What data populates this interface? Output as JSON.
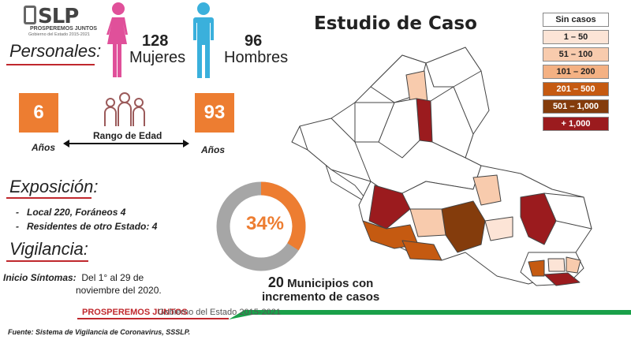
{
  "logo": {
    "name": "SLP",
    "line1": "PROSPEREMOS JUNTOS",
    "line2": "Gobierno del Estado 2015-2021"
  },
  "personales": {
    "heading": "Personales:",
    "mujeres": {
      "count": "128",
      "label": "Mujeres",
      "color": "#e0509a"
    },
    "hombres": {
      "count": "96",
      "label": "Hombres",
      "color": "#3ab0dc"
    }
  },
  "edad": {
    "min": "6",
    "max": "93",
    "min_label": "Años",
    "max_label": "Años",
    "rango_label": "Rango de Edad"
  },
  "exposicion": {
    "heading": "Exposición:",
    "items": [
      "Local  220, Foráneos 4",
      "Residentes de otro Estado: 4"
    ]
  },
  "vigilancia": {
    "heading": "Vigilancia:",
    "inicio_label": "Inicio Síntomas:",
    "inicio_text": "Del 1° al 29 de",
    "inicio_text2": "noviembre del 2020."
  },
  "donut": {
    "percent_label": "34%",
    "percent": 34,
    "fill_color": "#ed7d31",
    "rest_color": "#a6a6a6"
  },
  "mapa": {
    "title": "Estudio de Caso",
    "incremento_num": "20",
    "incremento_line1": "Municipios con",
    "incremento_line2": "incremento de casos"
  },
  "legend": [
    {
      "label": "Sin casos",
      "color": "#ffffff",
      "text_color": "#222222"
    },
    {
      "label": "1 – 50",
      "color": "#fce4d6",
      "text_color": "#222222"
    },
    {
      "label": "51 – 100",
      "color": "#f8cbad",
      "text_color": "#222222"
    },
    {
      "label": "101 – 200",
      "color": "#f4b183",
      "text_color": "#222222"
    },
    {
      "label": "201 – 500",
      "color": "#c55a11",
      "text_color": "#ffffff"
    },
    {
      "label": "501 – 1,000",
      "color": "#843c0c",
      "text_color": "#ffffff"
    },
    {
      "label": "+ 1,000",
      "color": "#9b1b1e",
      "text_color": "#ffffff"
    }
  ],
  "footer": {
    "prosperemos": "PROSPEREMOS JUNTOS",
    "gobierno": "Gobierno del Estado 2015-2021",
    "fuente": "Fuente: Sistema de Vigilancia de Coronavirus, SSSLP.",
    "red": "#c0282d",
    "green": "#1aa04a"
  }
}
